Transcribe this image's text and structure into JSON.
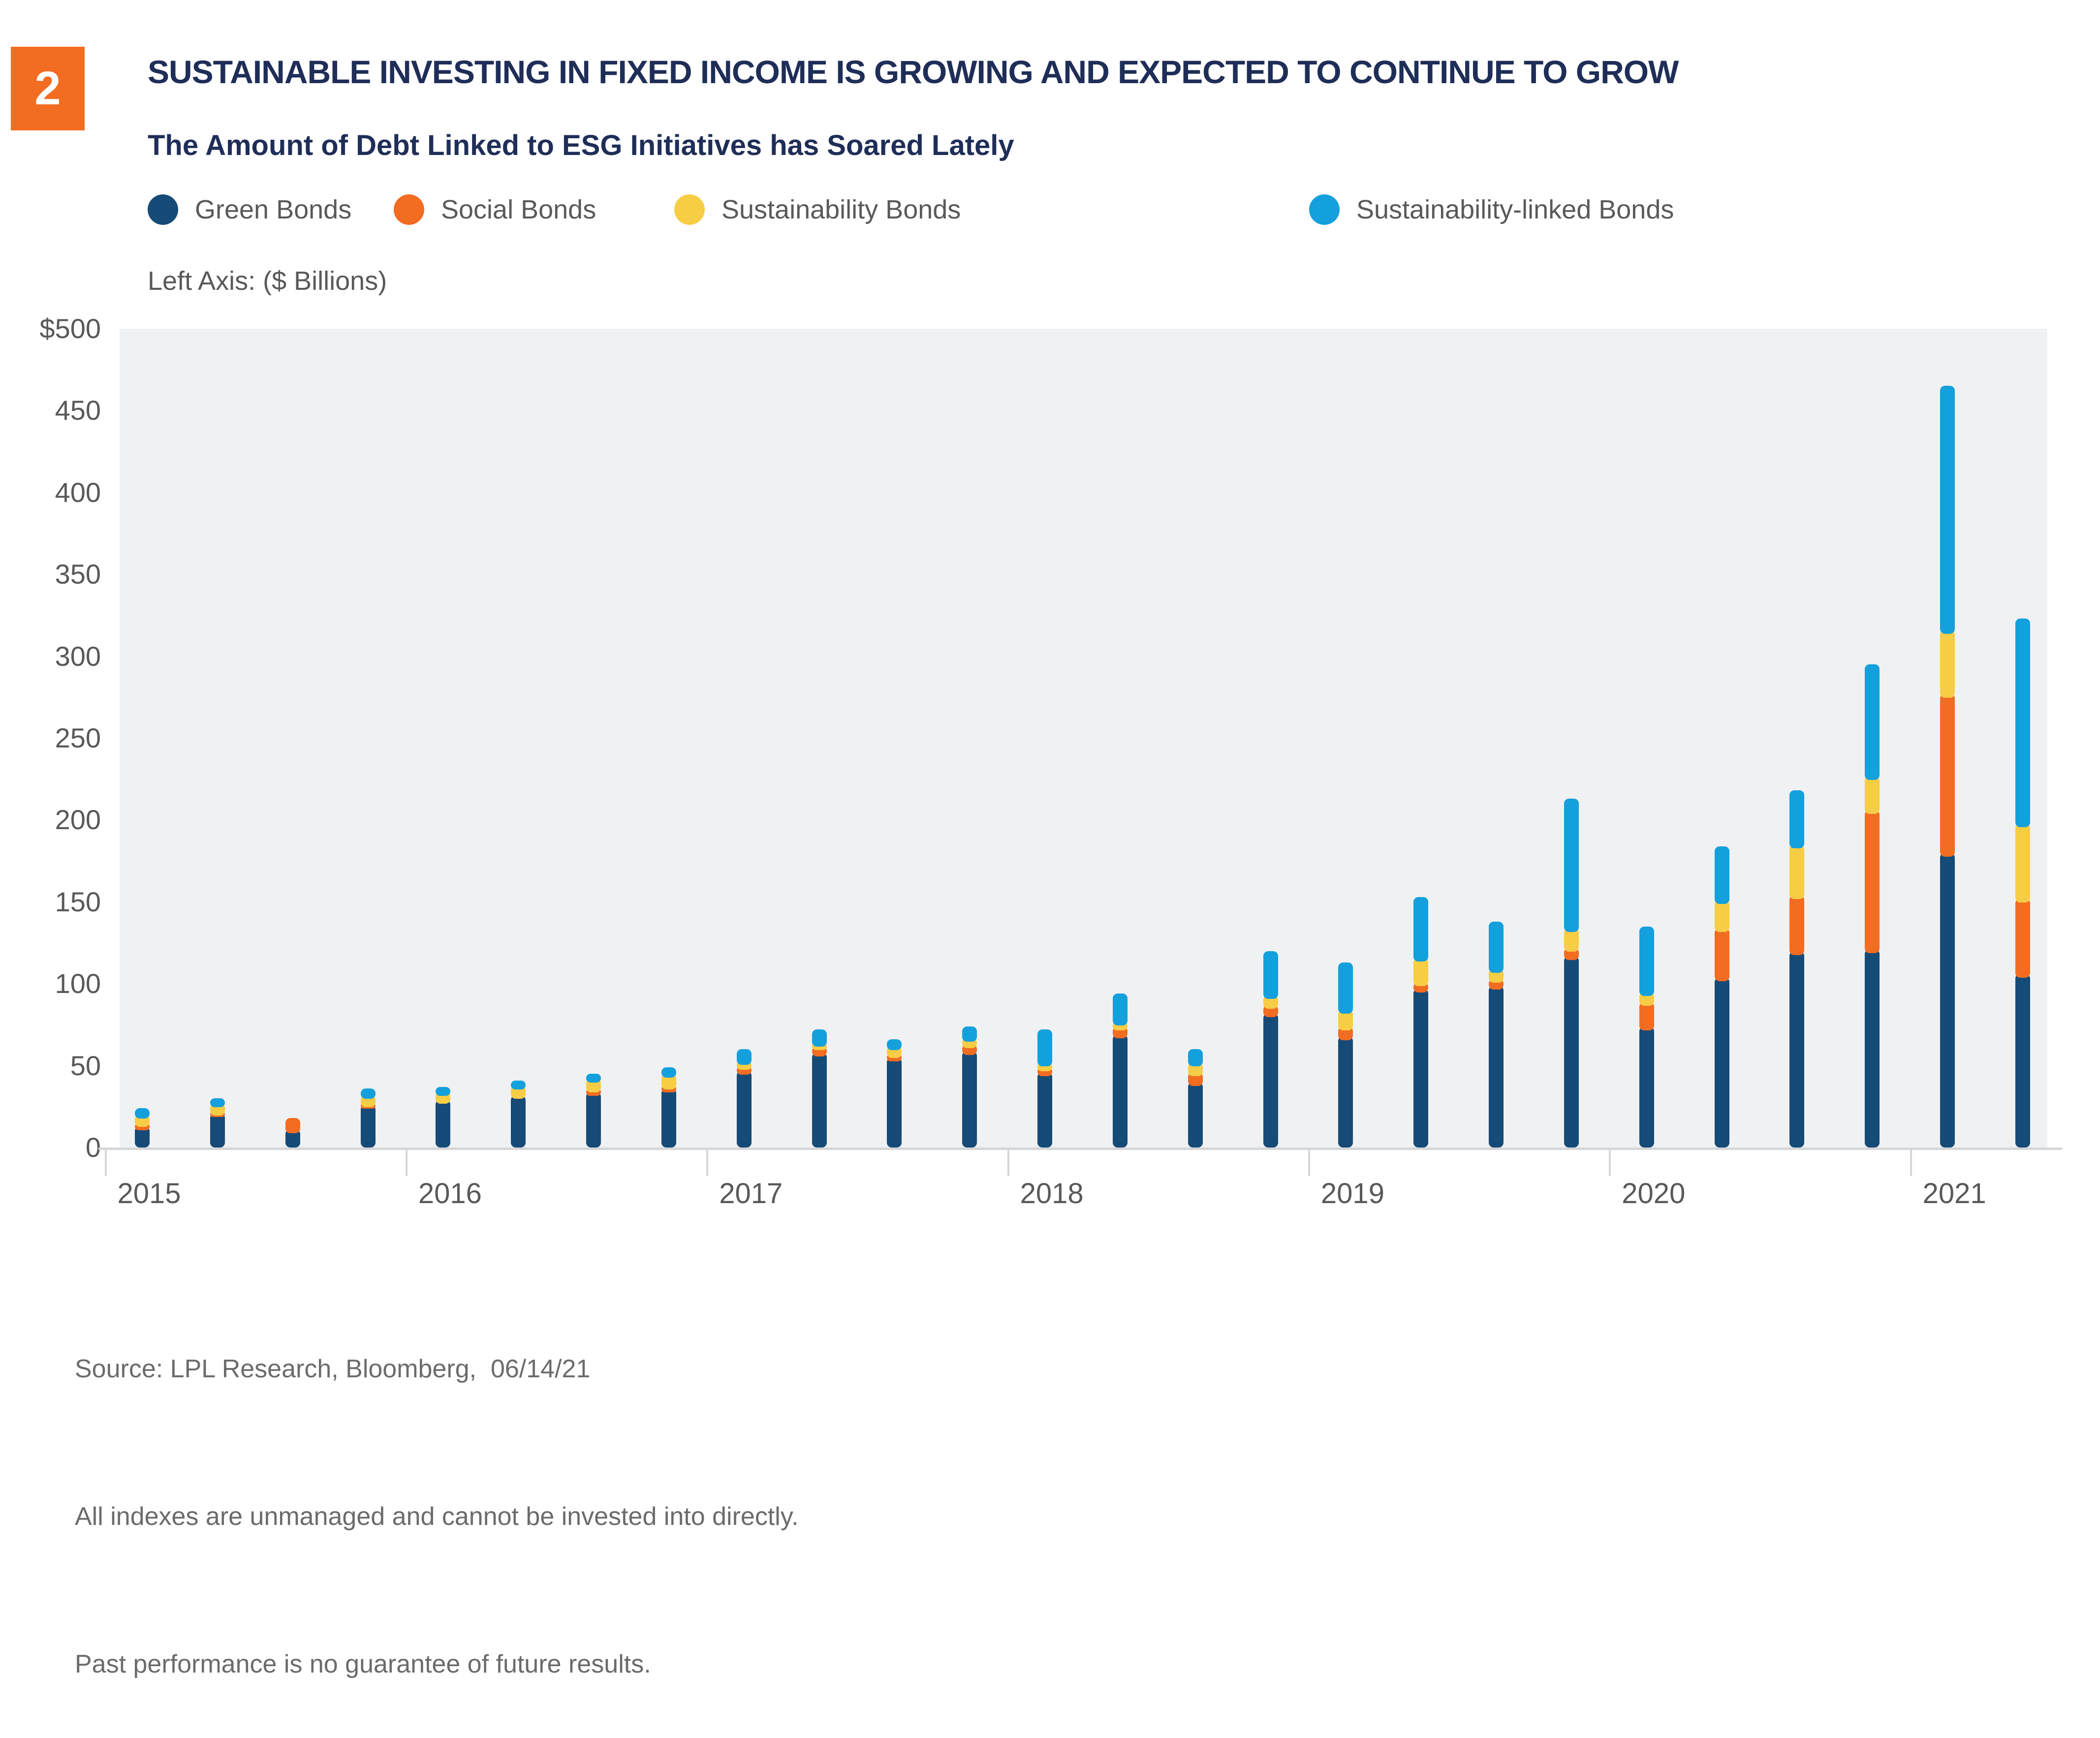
{
  "badge": {
    "number": "2"
  },
  "header": {
    "title": "SUSTAINABLE INVESTING IN FIXED INCOME IS GROWING AND EXPECTED TO CONTINUE TO GROW",
    "subtitle": "The Amount of Debt Linked to ESG Initiatives has Soared Lately"
  },
  "left_axis_note": "Left Axis: ($ Billions)",
  "footer": {
    "source_line": "Source: LPL Research, Bloomberg,  06/14/21",
    "disclaimer1": "All indexes are unmanaged and cannot be invested into directly.",
    "disclaimer2": "Past performance is no guarantee of future results."
  },
  "chart_data": {
    "type": "bar",
    "stacked": true,
    "title": "The Amount of Debt Linked to ESG Initiatives has Soared Lately",
    "ylabel": "$ Billions",
    "ylim": [
      0,
      500
    ],
    "ytick_step": 50,
    "ytick_top_label": "$500",
    "grid": false,
    "legend_position": "top",
    "categories": [
      "2015 Q1",
      "2015 Q2",
      "2015 Q3",
      "2015 Q4",
      "2016 Q1",
      "2016 Q2",
      "2016 Q3",
      "2016 Q4",
      "2017 Q1",
      "2017 Q2",
      "2017 Q3",
      "2017 Q4",
      "2018 Q1",
      "2018 Q2",
      "2018 Q3",
      "2018 Q4",
      "2019 Q1",
      "2019 Q2",
      "2019 Q3",
      "2019 Q4",
      "2020 Q1",
      "2020 Q2",
      "2020 Q3",
      "2020 Q4",
      "2021 Q1",
      "2021 Q2"
    ],
    "year_labels": [
      "2015",
      "2016",
      "2017",
      "2018",
      "2019",
      "2020",
      "2021"
    ],
    "series": [
      {
        "name": "Green Bonds",
        "color": "#164A77",
        "values": [
          13,
          21,
          11,
          26,
          29,
          32,
          34,
          36,
          47,
          58,
          55,
          59,
          46,
          69,
          40,
          82,
          68,
          97,
          99,
          117,
          74,
          104,
          120,
          121,
          180,
          106
        ]
      },
      {
        "name": "Social Bonds",
        "color": "#F26C21",
        "values": [
          2,
          1,
          7,
          1,
          0,
          0,
          2,
          2,
          3,
          4,
          2,
          4,
          3,
          5,
          6,
          5,
          6,
          4,
          4,
          5,
          15,
          30,
          34,
          85,
          97,
          46
        ]
      },
      {
        "name": "Sustainability Bonds",
        "color": "#F7CD45",
        "values": [
          5,
          5,
          0,
          5,
          5,
          6,
          6,
          7,
          3,
          2,
          5,
          4,
          3,
          3,
          6,
          6,
          10,
          15,
          6,
          12,
          6,
          17,
          31,
          21,
          39,
          46
        ]
      },
      {
        "name": "Sustainability-linked Bonds",
        "color": "#14A0DC",
        "values": [
          4,
          3,
          0,
          4,
          3,
          3,
          3,
          4,
          7,
          8,
          4,
          7,
          20,
          17,
          8,
          27,
          29,
          37,
          29,
          79,
          40,
          33,
          33,
          68,
          149,
          125
        ]
      }
    ],
    "legend_x_positions": [
      300,
      800,
      1370,
      2660
    ]
  },
  "layout_note": ""
}
